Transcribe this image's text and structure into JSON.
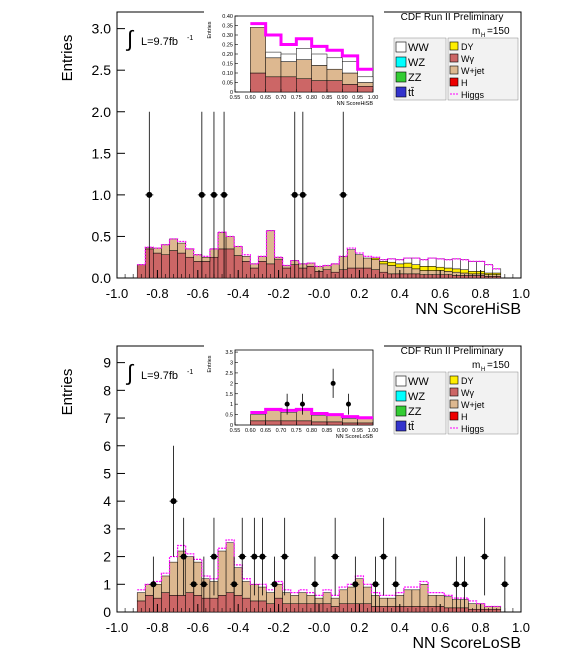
{
  "colors": {
    "WW": "#ffffff",
    "WZ": "#00ffff",
    "ZZ": "#33cc33",
    "ttbar": "#3333cc",
    "DY": "#ffee00",
    "Wgamma": "#cc6666",
    "Wjet": "#ddb890",
    "H": "#ee0000",
    "Higgs": "#ff00ff",
    "data": "#000000"
  },
  "chart_data": [
    {
      "id": "hisb",
      "type": "bar",
      "style": "stacked-histogram-with-data-points",
      "ylabel": "Entries",
      "xlabel": "NN ScoreHiSB",
      "lumi_prefix": "L=9.7fb",
      "lumi_sup": "-1",
      "cdf_label": "CDF Run II Preliminary",
      "mass_label_main": "m",
      "mass_label_sub": "H",
      "mass_label_value": "=150",
      "xlim": [
        -1.0,
        1.0
      ],
      "ylim": [
        0,
        3.2
      ],
      "xticks": [
        "-1.0",
        "-0.8",
        "-0.6",
        "-0.4",
        "-0.2",
        "-0.0",
        "0.2",
        "0.4",
        "0.6",
        "0.8",
        "1.0"
      ],
      "xtick_values": [
        -1.0,
        -0.8,
        -0.6,
        -0.4,
        -0.2,
        0.0,
        0.2,
        0.4,
        0.6,
        0.8,
        1.0
      ],
      "yticks": [
        "0.0",
        "0.5",
        "1.0",
        "1.5",
        "2.0",
        "2.5",
        "3.0"
      ],
      "ytick_values": [
        0,
        0.5,
        1.0,
        1.5,
        2.0,
        2.5,
        3.0
      ],
      "legend_left": [
        {
          "key": "WW",
          "label": "WW"
        },
        {
          "key": "WZ",
          "label": "WZ"
        },
        {
          "key": "ZZ",
          "label": "ZZ"
        },
        {
          "key": "ttbar",
          "label": "tt̄"
        }
      ],
      "legend_right": [
        {
          "key": "DY",
          "label": "DY"
        },
        {
          "key": "Wgamma",
          "label": "Wγ"
        },
        {
          "key": "Wjet",
          "label": "W+jet"
        },
        {
          "key": "H",
          "label": "H"
        },
        {
          "key": "Higgs",
          "label": "Higgs"
        }
      ],
      "bins_x0": -0.9,
      "bin_width": 0.04,
      "series": [
        {
          "name": "Wγ",
          "key": "Wgamma",
          "values": [
            0.16,
            0.35,
            0.3,
            0.28,
            0.33,
            0.3,
            0.25,
            0.2,
            0.2,
            0.25,
            0.35,
            0.35,
            0.27,
            0.2,
            0.12,
            0.2,
            0.17,
            0.22,
            0.12,
            0.16,
            0.12,
            0.14,
            0.08,
            0.1,
            0.07,
            0.1,
            0.12,
            0.12,
            0.12,
            0.1,
            0.07,
            0.05,
            0.05,
            0.05,
            0.05,
            0.04,
            0.04,
            0.04,
            0.04,
            0.03,
            0.03,
            0.03,
            0.03,
            0.02,
            0.02
          ]
        },
        {
          "name": "W+jet",
          "key": "Wjet",
          "values": [
            0.0,
            0.02,
            0.06,
            0.12,
            0.14,
            0.12,
            0.1,
            0.08,
            0.05,
            0.1,
            0.2,
            0.15,
            0.11,
            0.06,
            0.05,
            0.06,
            0.4,
            0.03,
            0.03,
            0.05,
            0.05,
            0.04,
            0.06,
            0.05,
            0.1,
            0.16,
            0.22,
            0.16,
            0.12,
            0.12,
            0.1,
            0.1,
            0.08,
            0.08,
            0.06,
            0.05,
            0.05,
            0.05,
            0.04,
            0.04,
            0.03,
            0.02,
            0.02,
            0.02,
            0.02
          ]
        },
        {
          "name": "DY",
          "key": "DY",
          "values": [
            0,
            0,
            0,
            0,
            0,
            0,
            0,
            0,
            0,
            0,
            0,
            0,
            0,
            0,
            0,
            0,
            0,
            0,
            0,
            0,
            0,
            0,
            0,
            0,
            0,
            0,
            0,
            0,
            0,
            0.02,
            0.03,
            0.04,
            0.04,
            0.05,
            0.05,
            0.05,
            0.05,
            0.04,
            0.04,
            0.04,
            0.04,
            0.03,
            0.03,
            0.02,
            0.02
          ]
        },
        {
          "name": "WW",
          "key": "WW",
          "values": [
            0,
            0,
            0,
            0,
            0,
            0,
            0,
            0,
            0,
            0,
            0,
            0,
            0,
            0,
            0,
            0,
            0,
            0,
            0,
            0,
            0,
            0,
            0,
            0,
            0,
            0,
            0,
            0,
            0,
            0,
            0.02,
            0.04,
            0.05,
            0.06,
            0.08,
            0.08,
            0.1,
            0.1,
            0.1,
            0.12,
            0.12,
            0.12,
            0.12,
            0.1,
            0.05
          ]
        },
        {
          "name": "Higgs",
          "key": "Higgs",
          "values": [
            0.12,
            0.33,
            0.35,
            0.37,
            0.44,
            0.44,
            0.35,
            0.28,
            0.26,
            0.34,
            0.53,
            0.5,
            0.36,
            0.28,
            0.16,
            0.26,
            0.55,
            0.24,
            0.15,
            0.2,
            0.15,
            0.17,
            0.13,
            0.14,
            0.15,
            0.25,
            0.36,
            0.3,
            0.26,
            0.25,
            0.22,
            0.22,
            0.2,
            0.2,
            0.2,
            0.18,
            0.18,
            0.16,
            0.16,
            0.15,
            0.14,
            0.12,
            0.12,
            0.1,
            0.08
          ]
        }
      ],
      "data_points": {
        "x": [
          -0.84,
          -0.58,
          -0.52,
          -0.47,
          -0.12,
          -0.08,
          0.12
        ],
        "y": [
          1,
          1,
          1,
          1,
          1,
          1,
          1
        ],
        "err": [
          1.0,
          1.0,
          1.0,
          1.0,
          1.0,
          1.0,
          1.0
        ]
      },
      "inset": {
        "ylabel": "Entries",
        "xlabel": "NN ScoreHiSB",
        "xlim": [
          0.55,
          1.0
        ],
        "ylim": [
          0,
          0.4
        ],
        "xticks": [
          "0.55",
          "0.60",
          "0.65",
          "0.70",
          "0.75",
          "0.80",
          "0.85",
          "0.90",
          "0.95",
          "1.00"
        ],
        "xtick_values": [
          0.55,
          0.6,
          0.65,
          0.7,
          0.75,
          0.8,
          0.85,
          0.9,
          0.95,
          1.0
        ],
        "yticks": [
          "0",
          "0.05",
          "0.10",
          "0.15",
          "0.20",
          "0.25",
          "0.30",
          "0.35",
          "0.40"
        ],
        "ytick_values": [
          0,
          0.05,
          0.1,
          0.15,
          0.2,
          0.25,
          0.3,
          0.35,
          0.4
        ],
        "bins": [
          0.6,
          0.65,
          0.7,
          0.75,
          0.8,
          0.85,
          0.9,
          0.95
        ],
        "bin_width": 0.05,
        "series": [
          {
            "name": "Wγ",
            "key": "Wgamma",
            "values": [
              0.1,
              0.08,
              0.08,
              0.07,
              0.06,
              0.06,
              0.04,
              0.03
            ]
          },
          {
            "name": "W+jet",
            "key": "Wjet",
            "values": [
              0.24,
              0.1,
              0.08,
              0.1,
              0.08,
              0.06,
              0.06,
              0.02
            ]
          },
          {
            "name": "WW",
            "key": "WW",
            "values": [
              0.0,
              0.03,
              0.04,
              0.06,
              0.06,
              0.06,
              0.06,
              0.03
            ]
          },
          {
            "name": "Higgs",
            "key": "Higgs",
            "values": [
              0.36,
              0.3,
              0.25,
              0.28,
              0.24,
              0.22,
              0.19,
              0.12
            ]
          }
        ]
      }
    },
    {
      "id": "losb",
      "type": "bar",
      "style": "stacked-histogram-with-data-points",
      "ylabel": "Entries",
      "xlabel": "NN ScoreLoSB",
      "lumi_prefix": "L=9.7fb",
      "lumi_sup": "-1",
      "cdf_label": "CDF Run II Preliminary",
      "mass_label_main": "m",
      "mass_label_sub": "H",
      "mass_label_value": "=150",
      "xlim": [
        -1.0,
        1.0
      ],
      "ylim": [
        0,
        9.6
      ],
      "xticks": [
        "-1.0",
        "-0.8",
        "-0.6",
        "-0.4",
        "-0.2",
        "-0.0",
        "0.2",
        "0.4",
        "0.6",
        "0.8",
        "1.0"
      ],
      "xtick_values": [
        -1.0,
        -0.8,
        -0.6,
        -0.4,
        -0.2,
        0.0,
        0.2,
        0.4,
        0.6,
        0.8,
        1.0
      ],
      "yticks": [
        "0",
        "1",
        "2",
        "3",
        "4",
        "5",
        "6",
        "7",
        "8",
        "9"
      ],
      "ytick_values": [
        0,
        1,
        2,
        3,
        4,
        5,
        6,
        7,
        8,
        9
      ],
      "legend_left": [
        {
          "key": "WW",
          "label": "WW"
        },
        {
          "key": "WZ",
          "label": "WZ"
        },
        {
          "key": "ZZ",
          "label": "ZZ"
        },
        {
          "key": "ttbar",
          "label": "tt̄"
        }
      ],
      "legend_right": [
        {
          "key": "DY",
          "label": "DY"
        },
        {
          "key": "Wgamma",
          "label": "Wγ"
        },
        {
          "key": "Wjet",
          "label": "W+jet"
        },
        {
          "key": "H",
          "label": "H"
        },
        {
          "key": "Higgs",
          "label": "Higgs"
        }
      ],
      "bins_x0": -0.9,
      "bin_width": 0.04,
      "series": [
        {
          "name": "Wγ",
          "key": "Wgamma",
          "values": [
            0.4,
            0.6,
            0.5,
            0.7,
            0.6,
            0.6,
            0.7,
            0.6,
            0.5,
            0.5,
            0.6,
            0.7,
            0.6,
            0.5,
            0.4,
            0.4,
            0.3,
            0.5,
            0.3,
            0.3,
            0.3,
            0.3,
            0.3,
            0.3,
            0.2,
            0.3,
            0.3,
            0.3,
            0.3,
            0.2,
            0.2,
            0.2,
            0.2,
            0.2,
            0.2,
            0.2,
            0.2,
            0.2,
            0.15,
            0.15,
            0.15,
            0.1,
            0.1,
            0.1,
            0.1
          ]
        },
        {
          "name": "W+jet",
          "key": "Wjet",
          "values": [
            0.3,
            0.4,
            0.5,
            0.6,
            1.2,
            1.6,
            1.3,
            1.2,
            0.7,
            0.6,
            1.6,
            1.8,
            1.0,
            0.6,
            0.6,
            0.5,
            0.4,
            0.5,
            0.4,
            0.3,
            0.4,
            0.3,
            0.2,
            0.4,
            0.3,
            0.5,
            0.6,
            0.9,
            0.6,
            0.4,
            0.3,
            0.3,
            0.4,
            0.6,
            0.6,
            0.8,
            0.4,
            0.4,
            0.4,
            0.3,
            0.3,
            0.2,
            0.2,
            0.1,
            0.1
          ]
        },
        {
          "name": "Higgs",
          "key": "Higgs",
          "values": [
            0.8,
            1.0,
            1.1,
            1.4,
            2.0,
            2.4,
            2.1,
            1.9,
            1.3,
            1.2,
            2.3,
            2.6,
            1.7,
            1.2,
            1.0,
            1.0,
            0.8,
            1.1,
            0.8,
            0.7,
            0.8,
            0.7,
            0.6,
            0.8,
            0.6,
            0.9,
            1.0,
            1.3,
            1.0,
            0.7,
            0.6,
            0.6,
            0.7,
            0.9,
            0.9,
            1.1,
            0.7,
            0.7,
            0.6,
            0.5,
            0.5,
            0.4,
            0.3,
            0.2,
            0.2
          ]
        }
      ],
      "data_points": {
        "x": [
          -0.82,
          -0.72,
          -0.67,
          -0.62,
          -0.57,
          -0.52,
          -0.42,
          -0.38,
          -0.32,
          -0.28,
          -0.22,
          -0.17,
          -0.02,
          0.08,
          0.18,
          0.28,
          0.32,
          0.38,
          0.68,
          0.72,
          0.82,
          0.92
        ],
        "y": [
          1,
          4,
          2,
          1,
          1,
          2,
          1,
          2,
          2,
          2,
          1,
          2,
          1,
          2,
          1,
          1,
          2,
          1,
          1,
          1,
          2,
          1
        ],
        "err": [
          1.0,
          2.0,
          1.4,
          1.0,
          1.0,
          1.4,
          1.0,
          1.4,
          1.4,
          1.4,
          1.0,
          1.4,
          1.0,
          1.4,
          1.0,
          1.0,
          1.4,
          1.0,
          1.0,
          1.0,
          1.4,
          1.0
        ]
      },
      "inset": {
        "ylabel": "Entries",
        "xlabel": "NN ScoreLoSB",
        "xlim": [
          0.55,
          1.0
        ],
        "ylim": [
          0,
          3.6
        ],
        "xticks": [
          "0.55",
          "0.60",
          "0.65",
          "0.70",
          "0.75",
          "0.80",
          "0.85",
          "0.90",
          "0.95",
          "1.00"
        ],
        "xtick_values": [
          0.55,
          0.6,
          0.65,
          0.7,
          0.75,
          0.8,
          0.85,
          0.9,
          0.95,
          1.0
        ],
        "yticks": [
          "0",
          "0.5",
          "1",
          "1.5",
          "2",
          "2.5",
          "3",
          "3.5"
        ],
        "ytick_values": [
          0,
          0.5,
          1,
          1.5,
          2,
          2.5,
          3,
          3.5
        ],
        "bins": [
          0.6,
          0.65,
          0.7,
          0.75,
          0.8,
          0.85,
          0.9,
          0.95
        ],
        "bin_width": 0.05,
        "series": [
          {
            "name": "Wγ",
            "key": "Wgamma",
            "values": [
              0.2,
              0.2,
              0.2,
              0.2,
              0.15,
              0.15,
              0.1,
              0.1
            ]
          },
          {
            "name": "W+jet",
            "key": "Wjet",
            "values": [
              0.3,
              0.5,
              0.4,
              0.5,
              0.3,
              0.3,
              0.2,
              0.2
            ]
          },
          {
            "name": "Higgs",
            "key": "Higgs",
            "values": [
              0.6,
              0.75,
              0.7,
              0.75,
              0.55,
              0.5,
              0.4,
              0.35
            ]
          }
        ],
        "data_points": {
          "x": [
            0.72,
            0.77,
            0.87,
            0.92
          ],
          "y": [
            1,
            1,
            2,
            1
          ],
          "err": [
            0.5,
            0.5,
            0.7,
            0.5
          ]
        }
      }
    }
  ]
}
